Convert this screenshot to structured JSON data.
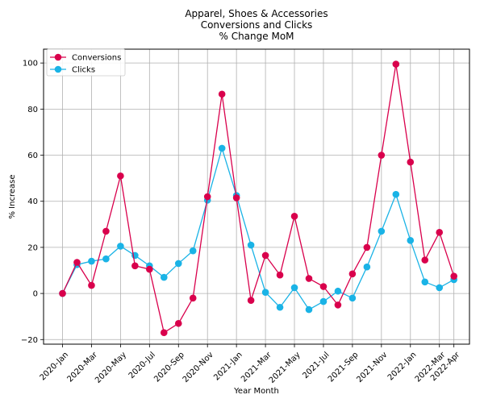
{
  "chart_data": {
    "type": "line",
    "title_lines": [
      "Apparel, Shoes & Accessories",
      "Conversions and Clicks",
      "% Change MoM"
    ],
    "xlabel": "Year Month",
    "ylabel": "% Increase",
    "ylim": [
      -22,
      106
    ],
    "yticks": [
      -20,
      0,
      20,
      40,
      60,
      80,
      100
    ],
    "ytick_labels": [
      "−20",
      "0",
      "20",
      "40",
      "60",
      "80",
      "100"
    ],
    "grid": true,
    "legend_position": "top-left",
    "categories": [
      "2020-Jan",
      "2020-Feb",
      "2020-Mar",
      "2020-Apr",
      "2020-May",
      "2020-Jun",
      "2020-Jul",
      "2020-Aug",
      "2020-Sep",
      "2020-Oct",
      "2020-Nov",
      "2020-Dec",
      "2021-Jan",
      "2021-Feb",
      "2021-Mar",
      "2021-Apr",
      "2021-May",
      "2021-Jun",
      "2021-Jul",
      "2021-Aug",
      "2021-Sep",
      "2021-Oct",
      "2021-Nov",
      "2021-Dec",
      "2022-Jan",
      "2022-Feb",
      "2022-Mar",
      "2022-Apr"
    ],
    "xtick_labels": [
      "2020-Jan",
      "2020-Mar",
      "2020-May",
      "2020-Jul",
      "2020-Sep",
      "2020-Nov",
      "2021-Jan",
      "2021-Mar",
      "2021-May",
      "2021-Jul",
      "2021-Sep",
      "2021-Nov",
      "2022-Jan",
      "2022-Mar",
      "2022-Apr"
    ],
    "series": [
      {
        "name": "Conversions",
        "color": "#d9004c",
        "values": [
          0,
          13.5,
          3.5,
          27,
          51,
          12,
          10.5,
          -17,
          -13,
          -2,
          42,
          86.5,
          41.5,
          -3,
          16.5,
          8,
          33.5,
          6.5,
          3,
          -5,
          8.5,
          20,
          60,
          99.5,
          57,
          14.5,
          26.5,
          7.5
        ]
      },
      {
        "name": "Clicks",
        "color": "#1ab3e6",
        "values": [
          0,
          12.5,
          14,
          15,
          20.5,
          16.5,
          12,
          7,
          13,
          18.5,
          40.5,
          63,
          42.5,
          21,
          0.5,
          -6,
          2.5,
          -7,
          -3.5,
          1,
          -2,
          11.5,
          27,
          43,
          23,
          5,
          2.5,
          6
        ]
      }
    ]
  }
}
